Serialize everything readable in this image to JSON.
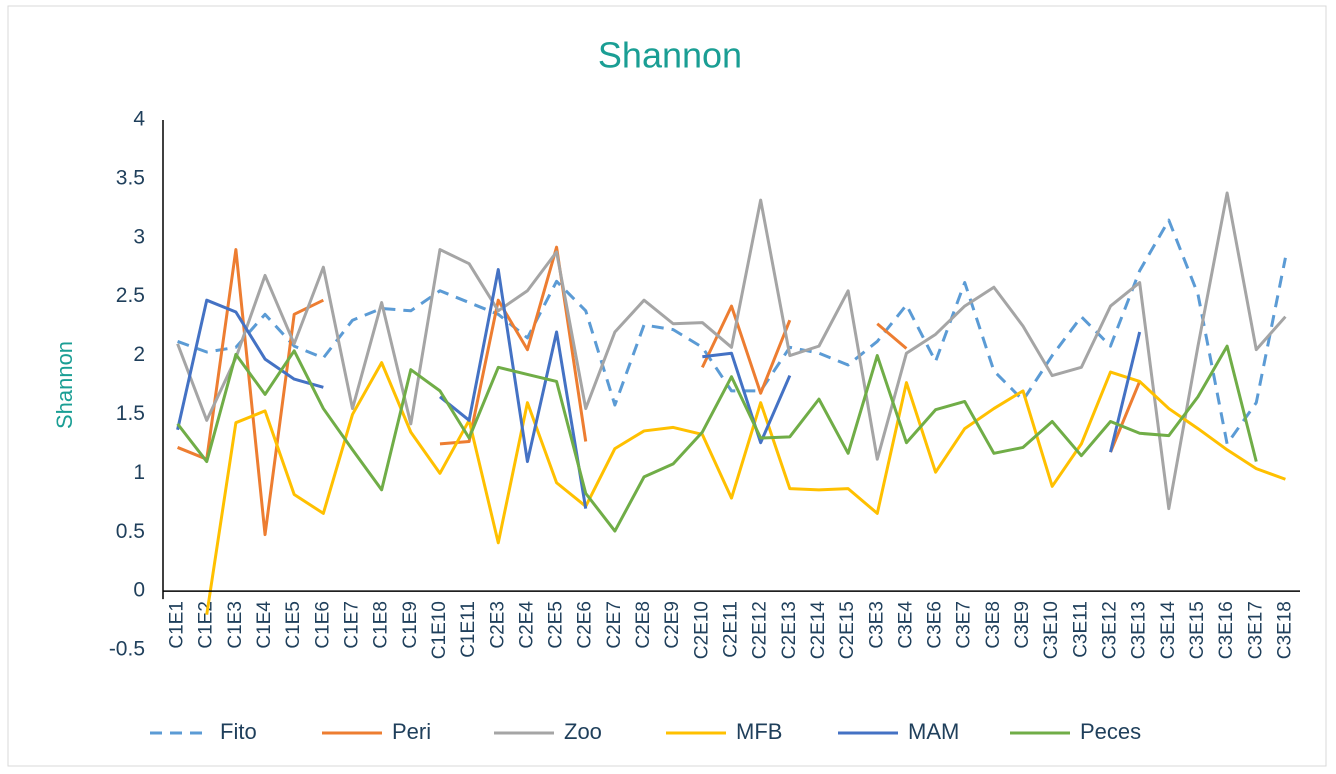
{
  "chart_data": {
    "type": "line",
    "title": "Shannon",
    "y_label": "Shannon",
    "categories": [
      "C1E1",
      "C1E2",
      "C1E3",
      "C1E4",
      "C1E5",
      "C1E6",
      "C1E7",
      "C1E8",
      "C1E9",
      "C1E10",
      "C1E11",
      "C2E3",
      "C2E4",
      "C2E5",
      "C2E6",
      "C2E7",
      "C2E8",
      "C2E9",
      "C2E10",
      "C2E11",
      "C2E12",
      "C2E13",
      "C2E14",
      "C2E15",
      "C3E3",
      "C3E4",
      "C3E6",
      "C3E7",
      "C3E8",
      "C3E9",
      "C3E10",
      "C3E11",
      "C3E12",
      "C3E13",
      "C3E14",
      "C3E15",
      "C3E16",
      "C3E17",
      "C3E18"
    ],
    "series": [
      {
        "name": "Fito",
        "color": "#5b9bd5",
        "dashed": true,
        "values": [
          2.12,
          2.03,
          2.07,
          2.35,
          2.08,
          1.98,
          2.3,
          2.4,
          2.38,
          2.55,
          2.45,
          2.35,
          2.15,
          2.63,
          2.38,
          1.58,
          2.26,
          2.22,
          2.07,
          1.7,
          1.7,
          2.07,
          2.02,
          1.92,
          2.12,
          2.43,
          1.95,
          2.62,
          1.87,
          1.62,
          2.0,
          2.33,
          2.08,
          2.72,
          3.15,
          2.52,
          1.25,
          1.6,
          2.83
        ]
      },
      {
        "name": "Peri",
        "color": "#ed7d31",
        "values": [
          1.22,
          1.12,
          2.9,
          0.48,
          2.35,
          2.47,
          null,
          null,
          null,
          1.25,
          1.27,
          2.47,
          2.05,
          2.92,
          1.27,
          null,
          null,
          null,
          1.9,
          2.42,
          1.68,
          2.3,
          null,
          null,
          2.27,
          2.06,
          null,
          null,
          null,
          null,
          null,
          null,
          1.18,
          1.78,
          null,
          null,
          null,
          null,
          null
        ]
      },
      {
        "name": "Zoo",
        "color": "#a5a5a5",
        "values": [
          2.1,
          1.45,
          1.98,
          2.68,
          2.1,
          2.75,
          1.55,
          2.45,
          1.42,
          2.9,
          2.78,
          2.38,
          2.55,
          2.88,
          1.55,
          2.2,
          2.47,
          2.27,
          2.28,
          2.07,
          3.32,
          2.0,
          2.08,
          2.55,
          1.12,
          2.02,
          2.18,
          2.42,
          2.58,
          2.25,
          1.83,
          1.9,
          2.42,
          2.62,
          0.7,
          2.08,
          3.38,
          2.05,
          2.33
        ]
      },
      {
        "name": "MFB",
        "color": "#ffc000",
        "values": [
          null,
          -0.2,
          1.43,
          1.53,
          0.82,
          0.66,
          1.5,
          1.94,
          1.35,
          1.0,
          1.45,
          0.41,
          1.6,
          0.92,
          0.72,
          1.21,
          1.36,
          1.39,
          1.33,
          0.79,
          1.6,
          0.87,
          0.86,
          0.87,
          0.66,
          1.77,
          1.01,
          1.38,
          1.55,
          1.7,
          0.89,
          1.25,
          1.86,
          1.78,
          1.55,
          1.38,
          1.2,
          1.04,
          0.95
        ]
      },
      {
        "name": "MAM",
        "color": "#4472c4",
        "values": [
          1.37,
          2.47,
          2.37,
          1.97,
          1.8,
          1.73,
          null,
          null,
          null,
          1.65,
          1.45,
          2.73,
          1.1,
          2.2,
          0.7,
          null,
          null,
          null,
          1.99,
          2.02,
          1.26,
          1.83,
          null,
          null,
          null,
          null,
          null,
          null,
          null,
          null,
          null,
          null,
          1.18,
          2.2,
          null,
          null,
          null,
          null,
          null
        ]
      },
      {
        "name": "Peces",
        "color": "#70ad47",
        "values": [
          1.42,
          1.1,
          2.01,
          1.67,
          2.04,
          1.55,
          1.2,
          0.86,
          1.88,
          1.7,
          1.3,
          1.9,
          1.84,
          1.78,
          0.83,
          0.51,
          0.97,
          1.08,
          1.35,
          1.82,
          1.3,
          1.31,
          1.63,
          1.17,
          2.0,
          1.26,
          1.54,
          1.61,
          1.17,
          1.22,
          1.44,
          1.15,
          1.44,
          1.34,
          1.32,
          1.65,
          2.08,
          1.1,
          null
        ]
      }
    ],
    "ylim": [
      -0.5,
      4
    ],
    "yticks": [
      -0.5,
      0,
      0.5,
      1,
      1.5,
      2,
      2.5,
      3,
      3.5,
      4
    ],
    "legend": "bottom"
  }
}
